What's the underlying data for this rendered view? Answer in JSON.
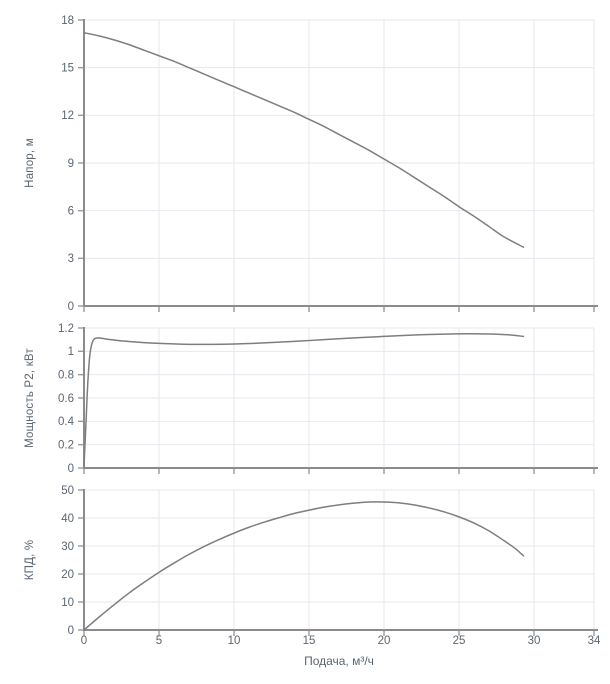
{
  "colors": {
    "curve": "#7e7e7e",
    "grid": "#e7e7ee",
    "axis": "#8b8b8b",
    "tick": "#9a9aa0",
    "text": "#5a6571",
    "background": "#ffffff"
  },
  "x_axis": {
    "label": "Подача, м³/ч",
    "lim": [
      0,
      34
    ],
    "ticks": [
      0,
      5,
      10,
      15,
      20,
      25,
      30,
      34
    ],
    "tick_labels": [
      "0",
      "5",
      "10",
      "15",
      "20",
      "25",
      "30",
      "34"
    ]
  },
  "chart_data": [
    {
      "type": "line",
      "name": "head",
      "ylabel": "Напор, м",
      "ylim": [
        0,
        18
      ],
      "yticks": [
        0,
        3,
        6,
        9,
        12,
        15,
        18
      ],
      "ytick_labels": [
        "0",
        "3",
        "6",
        "9",
        "12",
        "15",
        "18"
      ],
      "xlim": [
        0,
        34
      ],
      "grid": true,
      "points": [
        [
          0,
          17.2
        ],
        [
          1,
          17.0
        ],
        [
          2,
          16.75
        ],
        [
          3,
          16.45
        ],
        [
          4,
          16.1
        ],
        [
          5,
          15.75
        ],
        [
          6,
          15.4
        ],
        [
          7,
          15.0
        ],
        [
          8,
          14.6
        ],
        [
          9,
          14.2
        ],
        [
          10,
          13.8
        ],
        [
          11,
          13.4
        ],
        [
          12,
          13.0
        ],
        [
          13,
          12.6
        ],
        [
          14,
          12.2
        ],
        [
          15,
          11.75
        ],
        [
          16,
          11.3
        ],
        [
          17,
          10.8
        ],
        [
          18,
          10.3
        ],
        [
          19,
          9.8
        ],
        [
          20,
          9.25
        ],
        [
          21,
          8.7
        ],
        [
          22,
          8.1
        ],
        [
          23,
          7.5
        ],
        [
          24,
          6.9
        ],
        [
          25,
          6.25
        ],
        [
          26,
          5.65
        ],
        [
          27,
          5.0
        ],
        [
          28,
          4.35
        ],
        [
          29.3,
          3.7
        ]
      ]
    },
    {
      "type": "line",
      "name": "power",
      "ylabel": "Мощность P2, кВт",
      "ylim": [
        0,
        1.2
      ],
      "yticks": [
        0,
        0.2,
        0.4,
        0.6,
        0.8,
        1,
        1.2
      ],
      "ytick_labels": [
        "0",
        "0.2",
        "0.4",
        "0.6",
        "0.8",
        "1",
        "1.2"
      ],
      "xlim": [
        0,
        34
      ],
      "grid": true,
      "points": [
        [
          0,
          0.02
        ],
        [
          0.12,
          0.35
        ],
        [
          0.25,
          0.72
        ],
        [
          0.4,
          0.98
        ],
        [
          0.6,
          1.09
        ],
        [
          0.9,
          1.115
        ],
        [
          1.5,
          1.105
        ],
        [
          2.5,
          1.09
        ],
        [
          4,
          1.075
        ],
        [
          5.5,
          1.066
        ],
        [
          7,
          1.06
        ],
        [
          8.5,
          1.06
        ],
        [
          10,
          1.063
        ],
        [
          12,
          1.072
        ],
        [
          14,
          1.085
        ],
        [
          16,
          1.1
        ],
        [
          18,
          1.115
        ],
        [
          20,
          1.128
        ],
        [
          22,
          1.14
        ],
        [
          24,
          1.148
        ],
        [
          25.5,
          1.151
        ],
        [
          27,
          1.149
        ],
        [
          28.3,
          1.142
        ],
        [
          29.3,
          1.128
        ]
      ]
    },
    {
      "type": "line",
      "name": "efficiency",
      "ylabel": "КПД, %",
      "xlabel": "Подача, м³/ч",
      "ylim": [
        0,
        50
      ],
      "yticks": [
        0,
        10,
        20,
        30,
        40,
        50
      ],
      "ytick_labels": [
        "0",
        "10",
        "20",
        "30",
        "40",
        "50"
      ],
      "xlim": [
        0,
        34
      ],
      "xticks": [
        0,
        5,
        10,
        15,
        20,
        25,
        30,
        34
      ],
      "xtick_labels": [
        "0",
        "5",
        "10",
        "15",
        "20",
        "25",
        "30",
        "34"
      ],
      "grid": true,
      "points": [
        [
          0,
          0
        ],
        [
          1,
          4.6
        ],
        [
          2,
          9.0
        ],
        [
          3,
          13.2
        ],
        [
          4,
          17.0
        ],
        [
          5,
          20.6
        ],
        [
          6,
          23.9
        ],
        [
          7,
          27.0
        ],
        [
          8,
          29.8
        ],
        [
          9,
          32.3
        ],
        [
          10,
          34.6
        ],
        [
          11,
          36.7
        ],
        [
          12,
          38.5
        ],
        [
          13,
          40.1
        ],
        [
          14,
          41.6
        ],
        [
          15,
          42.8
        ],
        [
          16,
          43.9
        ],
        [
          17,
          44.7
        ],
        [
          18,
          45.3
        ],
        [
          19,
          45.7
        ],
        [
          20,
          45.7
        ],
        [
          21,
          45.4
        ],
        [
          22,
          44.7
        ],
        [
          23,
          43.6
        ],
        [
          24,
          42.2
        ],
        [
          25,
          40.4
        ],
        [
          26,
          38.2
        ],
        [
          27,
          35.4
        ],
        [
          28,
          31.9
        ],
        [
          28.7,
          29.3
        ],
        [
          29.3,
          26.5
        ]
      ]
    }
  ]
}
